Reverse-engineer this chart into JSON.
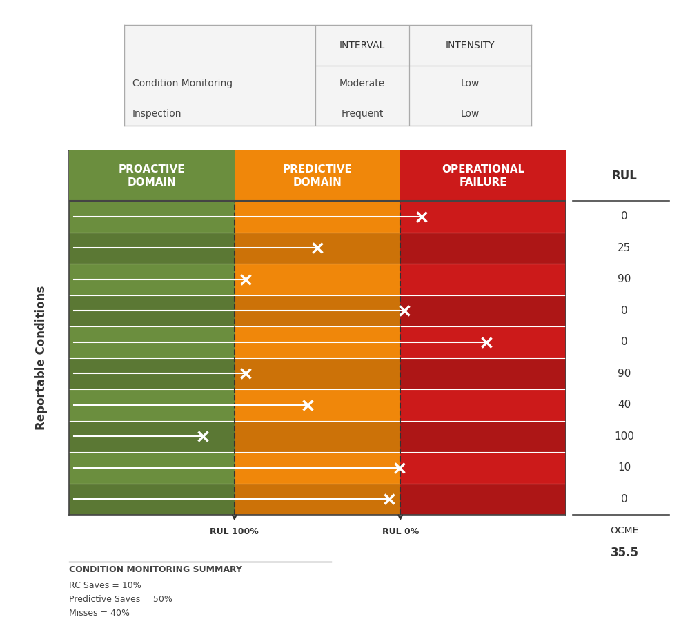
{
  "domain_colors": [
    "#6b8e3e",
    "#f0870a",
    "#cc1a1a"
  ],
  "domain_labels": [
    "PROACTIVE\nDOMAIN",
    "PREDICTIVE\nDOMAIN",
    "OPERATIONAL\nFAILURE"
  ],
  "domain_boundaries": [
    0.0,
    0.333,
    0.667,
    1.0
  ],
  "rul_values": [
    "0",
    "25",
    "90",
    "0",
    "0",
    "90",
    "40",
    "100",
    "10",
    "0"
  ],
  "x_positions": [
    0.71,
    0.5,
    0.355,
    0.675,
    0.84,
    0.355,
    0.48,
    0.27,
    0.665,
    0.645
  ],
  "num_rows": 10,
  "ylabel": "Reportable Conditions",
  "rul_header": "RUL",
  "ocme_label": "OCME",
  "ocme_value": "35.5",
  "rul_100_label": "RUL 100%",
  "rul_0_label": "RUL 0%",
  "summary_title": "CONDITION MONITORING SUMMARY",
  "summary_lines": [
    "RC Saves = 10%",
    "Predictive Saves = 50%",
    "Misses = 40%"
  ],
  "table_col_labels": [
    "INTERVAL",
    "INTENSITY"
  ],
  "table_rows": [
    [
      "Condition Monitoring",
      "Moderate",
      "Low"
    ],
    [
      "Inspection",
      "Frequent",
      "Low"
    ]
  ],
  "row_stripe_dark": "#5a7a32",
  "row_stripe_light": "#6b8e3e"
}
